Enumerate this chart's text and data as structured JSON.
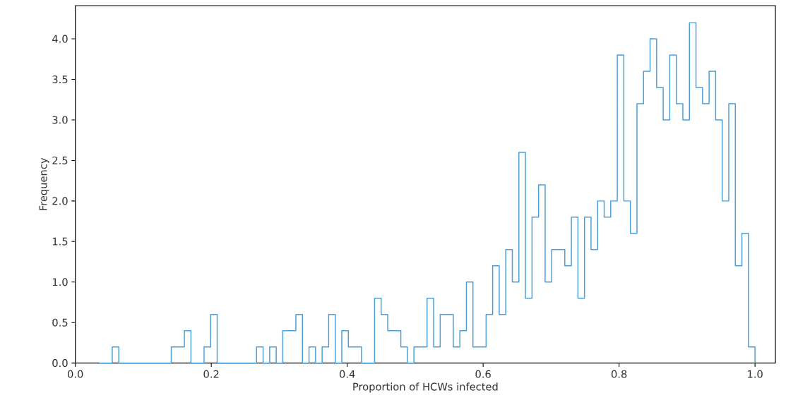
{
  "chart_data": {
    "type": "histogram",
    "xlabel": "Proportion of HCWs infected",
    "ylabel": "Frequency",
    "color": "#4a9fd8",
    "bins": [
      0.035,
      0.04465,
      0.0543,
      0.06395,
      0.0736,
      0.08325,
      0.0929,
      0.10255,
      0.1122,
      0.12185,
      0.1315,
      0.14115,
      0.1508,
      0.16045,
      0.1701,
      0.17975,
      0.1894,
      0.19905,
      0.2087,
      0.21835,
      0.228,
      0.23765,
      0.2473,
      0.25695,
      0.2666,
      0.27625,
      0.2859,
      0.29555,
      0.3052,
      0.31485,
      0.3245,
      0.33415,
      0.3438,
      0.35345,
      0.3631,
      0.37275,
      0.3824,
      0.39205,
      0.4017,
      0.41135,
      0.421,
      0.43065,
      0.4403,
      0.44995,
      0.4596,
      0.46925,
      0.4789,
      0.48855,
      0.4982,
      0.50785,
      0.5175,
      0.52715,
      0.5368,
      0.54645,
      0.5561,
      0.56575,
      0.5754,
      0.58505,
      0.5947,
      0.60435,
      0.614,
      0.62365,
      0.6333,
      0.64295,
      0.6526,
      0.66225,
      0.6719,
      0.68155,
      0.6912,
      0.70085,
      0.7105,
      0.72015,
      0.7298,
      0.73945,
      0.7491,
      0.75875,
      0.7684,
      0.77805,
      0.7877,
      0.79735,
      0.807,
      0.81665,
      0.8263,
      0.83595,
      0.8456,
      0.85525,
      0.8649,
      0.87455,
      0.8842,
      0.89385,
      0.9035,
      0.91315,
      0.9228,
      0.93245,
      0.9421,
      0.95175,
      0.9614,
      0.97105,
      0.9807,
      0.99035,
      1.0
    ],
    "values": [
      0,
      0,
      0.2,
      0,
      0,
      0,
      0,
      0,
      0,
      0,
      0,
      0.2,
      0.2,
      0.4,
      0,
      0,
      0.2,
      0.6,
      0,
      0,
      0,
      0,
      0,
      0,
      0.2,
      0,
      0.2,
      0,
      0.4,
      0.4,
      0.6,
      0,
      0.2,
      0,
      0.2,
      0.6,
      0,
      0.4,
      0.2,
      0.2,
      0,
      0,
      0.8,
      0.6,
      0.4,
      0.4,
      0.2,
      0,
      0.2,
      0.2,
      0.8,
      0.2,
      0.6,
      0.6,
      0.2,
      0.4,
      1.0,
      0.2,
      0.2,
      0.6,
      1.2,
      0.6,
      1.4,
      1.0,
      2.6,
      0.8,
      1.8,
      2.2,
      1.0,
      1.4,
      1.4,
      1.2,
      1.8,
      0.8,
      1.8,
      1.4,
      2.0,
      1.8,
      2.0,
      3.8,
      2.0,
      1.6,
      3.2,
      3.6,
      4.0,
      3.4,
      3.0,
      3.8,
      3.2,
      3.0,
      4.2,
      3.4,
      3.2,
      3.6,
      3.0,
      2.0,
      3.2,
      1.2,
      1.6,
      0.2
    ],
    "xlim": [
      0,
      1.03
    ],
    "ylim": [
      0,
      4.41
    ],
    "xticks": [
      {
        "value": 0,
        "label": "0.0"
      },
      {
        "value": 0.2,
        "label": "0.2"
      },
      {
        "value": 0.4,
        "label": "0.4"
      },
      {
        "value": 0.6,
        "label": "0.6"
      },
      {
        "value": 0.8,
        "label": "0.8"
      },
      {
        "value": 1.0,
        "label": "1.0"
      }
    ],
    "yticks": [
      {
        "value": 0,
        "label": "0.0"
      },
      {
        "value": 0.5,
        "label": "0.5"
      },
      {
        "value": 1.0,
        "label": "1.0"
      },
      {
        "value": 1.5,
        "label": "1.5"
      },
      {
        "value": 2.0,
        "label": "2.0"
      },
      {
        "value": 2.5,
        "label": "2.5"
      },
      {
        "value": 3.0,
        "label": "3.0"
      },
      {
        "value": 3.5,
        "label": "3.5"
      },
      {
        "value": 4.0,
        "label": "4.0"
      }
    ]
  }
}
